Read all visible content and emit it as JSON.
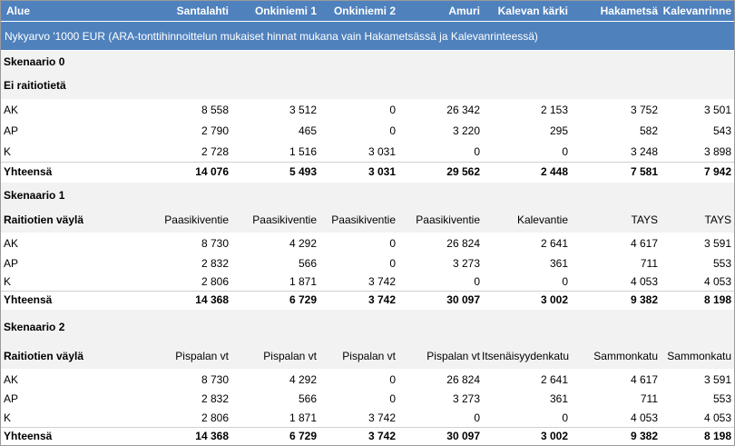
{
  "header": {
    "label": "Alue",
    "columns": [
      "Santalahti",
      "Onkiniemi 1",
      "Onkiniemi 2",
      "Amuri",
      "Kalevan kärki",
      "Hakametsä",
      "Kalevanrinne"
    ]
  },
  "note": "Nykyarvo '1000 EUR (ARA-tonttihinnoittelun mukaiset hinnat mukana vain Hakametsässä ja Kalevanrinteessä)",
  "scenarios": [
    {
      "title": "Skenaario 0",
      "subtitle": "Ei raitiotietä",
      "route_label": "",
      "routes": [],
      "rows": [
        {
          "label": "AK",
          "values": [
            "8 558",
            "3 512",
            "0",
            "26 342",
            "2 153",
            "3 752",
            "3 501"
          ]
        },
        {
          "label": "AP",
          "values": [
            "2 790",
            "465",
            "0",
            "3 220",
            "295",
            "582",
            "543"
          ]
        },
        {
          "label": "K",
          "values": [
            "2 728",
            "1 516",
            "3 031",
            "0",
            "0",
            "3 248",
            "3 898"
          ]
        }
      ],
      "total": {
        "label": "Yhteensä",
        "values": [
          "14 076",
          "5 493",
          "3 031",
          "29 562",
          "2 448",
          "7 581",
          "7 942"
        ]
      }
    },
    {
      "title": "Skenaario 1",
      "subtitle": "",
      "route_label": "Raitiotien väylä",
      "routes": [
        "Paasikiventie",
        "Paasikiventie",
        "Paasikiventie",
        "Paasikiventie",
        "Kalevantie",
        "TAYS",
        "TAYS"
      ],
      "rows": [
        {
          "label": "AK",
          "values": [
            "8 730",
            "4 292",
            "0",
            "26 824",
            "2 641",
            "4 617",
            "3 591"
          ]
        },
        {
          "label": "AP",
          "values": [
            "2 832",
            "566",
            "0",
            "3 273",
            "361",
            "711",
            "553"
          ]
        },
        {
          "label": "K",
          "values": [
            "2 806",
            "1 871",
            "3 742",
            "0",
            "0",
            "4 053",
            "4 053"
          ]
        }
      ],
      "total": {
        "label": "Yhteensä",
        "values": [
          "14 368",
          "6 729",
          "3 742",
          "30 097",
          "3 002",
          "9 382",
          "8 198"
        ]
      }
    },
    {
      "title": "Skenaario 2",
      "subtitle": "",
      "route_label": "Raitiotien väylä",
      "routes": [
        "Pispalan vt",
        "Pispalan vt",
        "Pispalan vt",
        "Pispalan vt",
        "Itsenäisyydenkatu",
        "Sammonkatu",
        "Sammonkatu"
      ],
      "rows": [
        {
          "label": "AK",
          "values": [
            "8 730",
            "4 292",
            "0",
            "26 824",
            "2 641",
            "4 617",
            "3 591"
          ]
        },
        {
          "label": "AP",
          "values": [
            "2 832",
            "566",
            "0",
            "3 273",
            "361",
            "711",
            "553"
          ]
        },
        {
          "label": "K",
          "values": [
            "2 806",
            "1 871",
            "3 742",
            "0",
            "0",
            "4 053",
            "4 053"
          ]
        }
      ],
      "total": {
        "label": "Yhteensä",
        "values": [
          "14 368",
          "6 729",
          "3 742",
          "30 097",
          "3 002",
          "9 382",
          "8 198"
        ]
      }
    }
  ]
}
